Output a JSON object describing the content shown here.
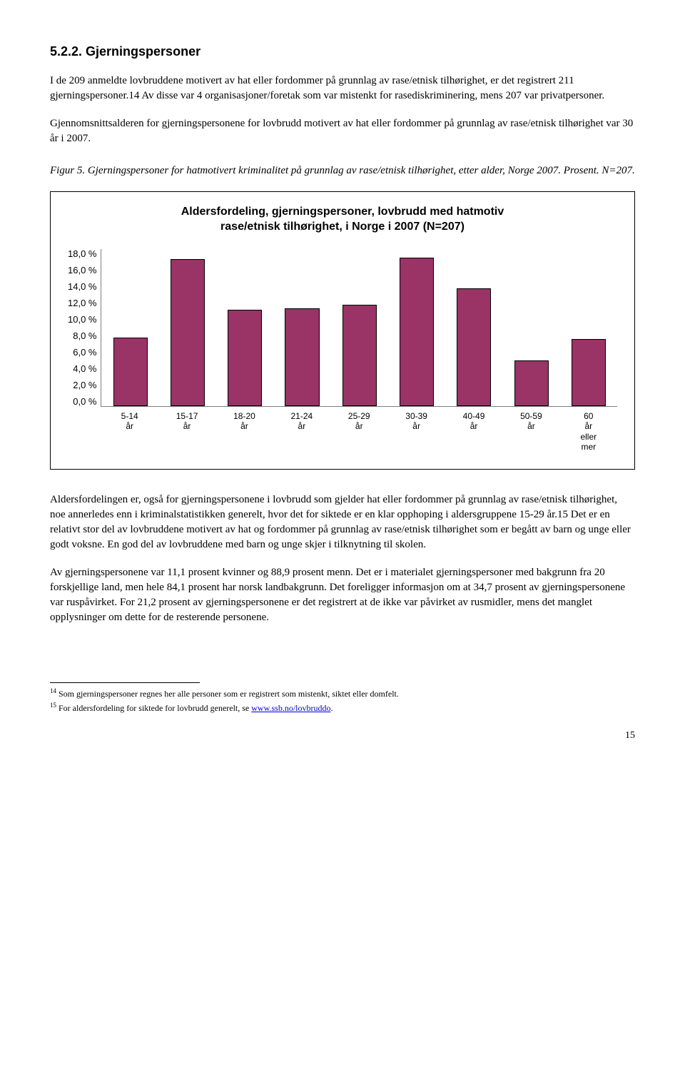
{
  "heading": "5.2.2. Gjerningspersoner",
  "para1": "I de 209 anmeldte lovbruddene motivert av hat eller fordommer på grunnlag av rase/etnisk tilhørighet, er det registrert 211 gjerningspersoner.14 Av disse var 4 organisasjoner/foretak som var mistenkt for rasediskriminering, mens 207 var privatpersoner.",
  "para2": "Gjennomsnittsalderen for gjerningspersonene for lovbrudd motivert av hat eller fordommer på grunnlag av rase/etnisk tilhørighet var 30 år i 2007.",
  "figcaption": "Figur 5. Gjerningspersoner for hatmotivert kriminalitet på grunnlag av rase/etnisk tilhørighet, etter alder, Norge 2007. Prosent. N=207.",
  "chart": {
    "type": "bar",
    "title_l1": "Aldersfordeling, gjerningspersoner, lovbrudd med hatmotiv",
    "title_l2": "rase/etnisk tilhørighet, i Norge i 2007 (N=207)",
    "categories": [
      "5-14 år",
      "15-17 år",
      "18-20 år",
      "21-24 år",
      "25-29 år",
      "30-39 år",
      "40-49 år",
      "50-59 år",
      "60 år eller mer"
    ],
    "values": [
      7.8,
      16.8,
      11.0,
      11.2,
      11.6,
      17.0,
      13.5,
      5.2,
      7.7
    ],
    "ylim_max": 18.0,
    "yticks": [
      "18,0 %",
      "16,0 %",
      "14,0 %",
      "12,0 %",
      "10,0 %",
      "8,0 %",
      "6,0 %",
      "4,0 %",
      "2,0 %",
      "0,0 %"
    ],
    "bar_fill": "#9a3366",
    "bar_border": "#000000",
    "plot_border": "#7f7f7f",
    "background": "#ffffff",
    "title_fontsize": 16,
    "tick_fontsize": 13
  },
  "para3": "Aldersfordelingen er, også for gjerningspersonene i lovbrudd som gjelder hat eller fordommer på grunnlag av rase/etnisk tilhørighet, noe annerledes enn i kriminalstatistikken generelt, hvor det for siktede er en klar opphoping i aldersgruppene 15-29 år.15 Det er en relativt stor del av lovbruddene motivert av hat og fordommer på grunnlag av rase/etnisk tilhørighet som er begått av barn og unge eller godt voksne. En god del av lovbruddene med barn og unge skjer i tilknytning til skolen.",
  "para4": "Av gjerningspersonene var 11,1 prosent kvinner og 88,9 prosent menn. Det er i materialet gjerningspersoner med bakgrunn fra 20 forskjellige land, men hele 84,1 prosent har norsk landbakgrunn. Det foreligger informasjon om at 34,7 prosent av gjerningspersonene var ruspåvirket. For 21,2 prosent av gjerningspersonene er det registrert at de ikke var påvirket av rusmidler, mens det manglet opplysninger om dette for de resterende personene.",
  "fn1": "14 Som gjerningspersoner regnes her alle personer som er registrert som mistenkt, siktet eller domfelt.",
  "fn2_a": "15 For aldersfordeling for siktede for lovbrudd generelt, se ",
  "fn2_link": "www.ssb.no/lovbruddo",
  "fn2_b": ".",
  "pagenum": "15"
}
